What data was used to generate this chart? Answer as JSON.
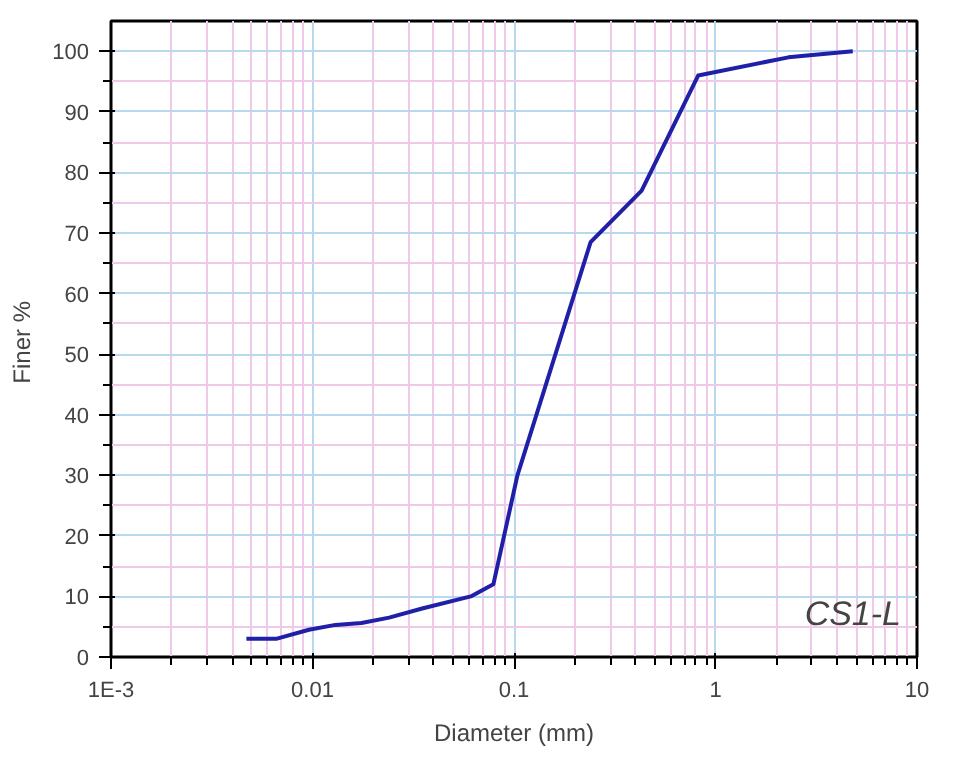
{
  "chart_data": {
    "type": "line",
    "xlabel": "Diameter (mm)",
    "ylabel": "Finer  %",
    "log": "x",
    "grid": true,
    "x": [
      0.0047,
      0.0066,
      0.0096,
      0.013,
      0.0175,
      0.024,
      0.035,
      0.061,
      0.079,
      0.104,
      0.24,
      0.43,
      0.82,
      2.3,
      4.8
    ],
    "series": [
      {
        "color": "#1f1fa8",
        "values": [
          3,
          3,
          4.5,
          5.3,
          5.6,
          6.5,
          8,
          10,
          12,
          30,
          68.5,
          77,
          96,
          99,
          100
        ]
      }
    ],
    "xlim": [
      0.001,
      10
    ],
    "xticks": [
      {
        "value": 0.001,
        "label": "1E-3"
      },
      0.01,
      0.1,
      1,
      10
    ],
    "ylim": [
      0,
      105
    ],
    "yticks": [
      0,
      10,
      20,
      30,
      40,
      50,
      60,
      70,
      80,
      90,
      100
    ],
    "annotations": [
      "CS1-L"
    ]
  }
}
